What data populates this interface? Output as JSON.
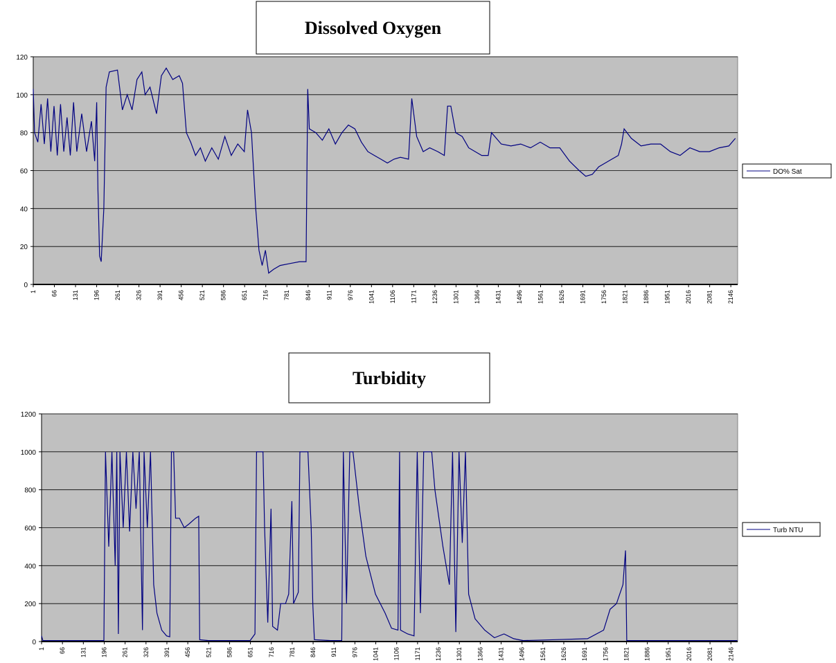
{
  "chart_data": [
    {
      "type": "line",
      "title": "Dissolved Oxygen",
      "x": [
        1,
        5,
        15,
        25,
        35,
        45,
        55,
        65,
        75,
        85,
        95,
        105,
        115,
        125,
        135,
        150,
        165,
        180,
        190,
        196,
        200,
        205,
        210,
        218,
        225,
        235,
        260,
        275,
        290,
        305,
        320,
        335,
        345,
        360,
        380,
        395,
        410,
        430,
        450,
        460,
        472,
        485,
        500,
        515,
        530,
        550,
        570,
        590,
        610,
        630,
        650,
        660,
        672,
        685,
        695,
        705,
        715,
        725,
        740,
        760,
        790,
        820,
        840,
        845,
        850,
        870,
        890,
        910,
        930,
        950,
        970,
        990,
        1010,
        1030,
        1050,
        1070,
        1090,
        1110,
        1130,
        1155,
        1165,
        1180,
        1200,
        1220,
        1245,
        1265,
        1275,
        1285,
        1300,
        1320,
        1340,
        1360,
        1380,
        1400,
        1410,
        1440,
        1470,
        1500,
        1530,
        1560,
        1590,
        1620,
        1650,
        1680,
        1700,
        1720,
        1740,
        1760,
        1780,
        1800,
        1810,
        1818,
        1840,
        1870,
        1900,
        1930,
        1960,
        1990,
        2020,
        2050,
        2080,
        2110,
        2140,
        2160
      ],
      "series": [
        {
          "name": "DO% Sat",
          "color": "#000080",
          "values": [
            103,
            80,
            75,
            95,
            74,
            98,
            70,
            94,
            68,
            95,
            70,
            88,
            68,
            96,
            70,
            90,
            70,
            86,
            65,
            96,
            50,
            15,
            12,
            40,
            104,
            112,
            113,
            92,
            100,
            92,
            108,
            112,
            100,
            104,
            90,
            110,
            114,
            108,
            110,
            106,
            80,
            75,
            68,
            72,
            65,
            72,
            66,
            78,
            68,
            74,
            70,
            92,
            80,
            40,
            18,
            10,
            18,
            6,
            8,
            10,
            11,
            12,
            12,
            103,
            82,
            80,
            76,
            82,
            74,
            80,
            84,
            82,
            75,
            70,
            68,
            66,
            64,
            66,
            67,
            66,
            98,
            78,
            70,
            72,
            70,
            68,
            94,
            94,
            80,
            78,
            72,
            70,
            68,
            68,
            80,
            74,
            73,
            74,
            72,
            75,
            72,
            72,
            65,
            60,
            57,
            58,
            62,
            64,
            66,
            68,
            74,
            82,
            77,
            73,
            74,
            74,
            70,
            68,
            72,
            70,
            70,
            72,
            73,
            77
          ]
        }
      ],
      "xlim": [
        1,
        2167
      ],
      "xticks": [
        1,
        66,
        131,
        196,
        261,
        326,
        391,
        456,
        521,
        586,
        651,
        716,
        781,
        846,
        911,
        976,
        1041,
        1106,
        1171,
        1236,
        1301,
        1366,
        1431,
        1496,
        1561,
        1626,
        1691,
        1756,
        1821,
        1886,
        1951,
        2016,
        2081,
        2146
      ],
      "ylim": [
        0,
        120
      ],
      "yticks": [
        0,
        20,
        40,
        60,
        80,
        100,
        120
      ],
      "grid": true,
      "background": "#c0c0c0",
      "legend": "right"
    },
    {
      "type": "line",
      "title": "Turbidity",
      "x": [
        1,
        5,
        100,
        195,
        200,
        210,
        220,
        230,
        235,
        240,
        245,
        255,
        265,
        275,
        285,
        295,
        305,
        315,
        320,
        330,
        340,
        350,
        360,
        375,
        390,
        400,
        405,
        412,
        418,
        430,
        445,
        460,
        480,
        490,
        493,
        520,
        600,
        650,
        665,
        670,
        690,
        695,
        705,
        715,
        720,
        735,
        745,
        760,
        770,
        780,
        785,
        800,
        805,
        830,
        840,
        845,
        850,
        900,
        935,
        940,
        950,
        960,
        970,
        990,
        1010,
        1040,
        1070,
        1090,
        1110,
        1115,
        1118,
        1140,
        1160,
        1170,
        1180,
        1190,
        1200,
        1215,
        1225,
        1250,
        1270,
        1280,
        1290,
        1300,
        1310,
        1320,
        1330,
        1350,
        1380,
        1410,
        1440,
        1470,
        1500,
        1600,
        1700,
        1750,
        1770,
        1790,
        1810,
        1818,
        1822,
        1900,
        2000,
        2100,
        2150,
        2166
      ],
      "series": [
        {
          "name": "Turb NTU",
          "color": "#000080",
          "values": [
            30,
            5,
            5,
            5,
            1000,
            500,
            1000,
            400,
            1000,
            40,
            1000,
            600,
            1000,
            580,
            1000,
            700,
            1000,
            60,
            1000,
            600,
            1000,
            300,
            150,
            60,
            30,
            25,
            1000,
            1000,
            650,
            650,
            600,
            620,
            650,
            660,
            10,
            5,
            5,
            5,
            40,
            1000,
            1000,
            600,
            100,
            700,
            80,
            60,
            200,
            200,
            250,
            740,
            200,
            260,
            1000,
            1000,
            600,
            200,
            10,
            5,
            5,
            1000,
            200,
            1000,
            1000,
            700,
            450,
            250,
            150,
            70,
            60,
            1000,
            60,
            40,
            30,
            1000,
            150,
            1000,
            1000,
            1000,
            800,
            500,
            300,
            1000,
            50,
            1000,
            520,
            1000,
            250,
            120,
            60,
            20,
            40,
            15,
            5,
            10,
            15,
            60,
            170,
            200,
            300,
            480,
            5,
            5,
            5,
            5,
            5,
            5
          ]
        }
      ],
      "xlim": [
        1,
        2167
      ],
      "xticks": [
        1,
        66,
        131,
        196,
        261,
        326,
        391,
        456,
        521,
        586,
        651,
        716,
        781,
        846,
        911,
        976,
        1041,
        1106,
        1171,
        1236,
        1301,
        1366,
        1431,
        1496,
        1561,
        1626,
        1691,
        1756,
        1821,
        1886,
        1951,
        2016,
        2081,
        2146
      ],
      "ylim": [
        0,
        1200
      ],
      "yticks": [
        0,
        200,
        400,
        600,
        800,
        1000,
        1200
      ],
      "grid": true,
      "background": "#c0c0c0",
      "legend": "right"
    }
  ]
}
